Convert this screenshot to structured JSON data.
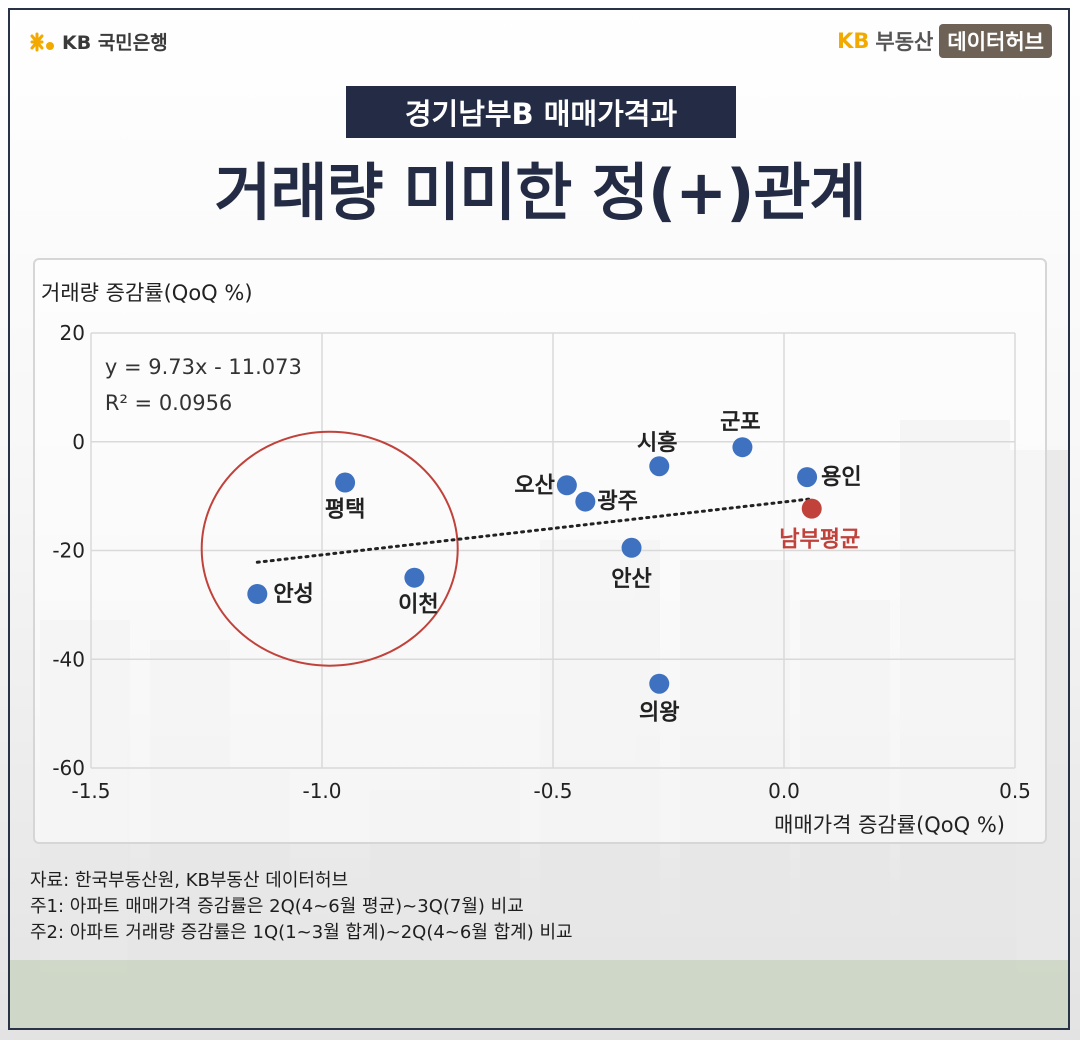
{
  "header": {
    "left_logo_text": "KB 국민은행",
    "right_logo_kb": "KB",
    "right_logo_text": "부동산",
    "right_badge": "데이터허브"
  },
  "title": {
    "subtitle": "경기남부B 매매가격과",
    "main": "거래량 미미한 정(+)관계"
  },
  "chart_data": {
    "type": "scatter",
    "ylabel": "거래량 증감률(QoQ %)",
    "xlabel": "매매가격 증감률(QoQ %)",
    "xlim": [
      -1.5,
      0.5
    ],
    "ylim": [
      -60,
      20
    ],
    "xticks": [
      "-1.5",
      "-1.0",
      "-0.5",
      "0.0",
      "0.5"
    ],
    "yticks": [
      "20",
      "0",
      "-20",
      "-40",
      "-60"
    ],
    "equation": "y = 9.73x - 11.073",
    "r_squared": "R² = 0.0956",
    "points": [
      {
        "label": "평택",
        "x": -0.95,
        "y": -7.5,
        "highlight": false
      },
      {
        "label": "안성",
        "x": -1.14,
        "y": -28.0,
        "highlight": false
      },
      {
        "label": "이천",
        "x": -0.8,
        "y": -25.0,
        "highlight": false
      },
      {
        "label": "오산",
        "x": -0.47,
        "y": -8.0,
        "highlight": false
      },
      {
        "label": "광주",
        "x": -0.43,
        "y": -11.0,
        "highlight": false
      },
      {
        "label": "시흥",
        "x": -0.27,
        "y": -4.5,
        "highlight": false
      },
      {
        "label": "군포",
        "x": -0.09,
        "y": -1.0,
        "highlight": false
      },
      {
        "label": "용인",
        "x": 0.05,
        "y": -6.5,
        "highlight": false
      },
      {
        "label": "안산",
        "x": -0.33,
        "y": -19.5,
        "highlight": false
      },
      {
        "label": "의왕",
        "x": -0.27,
        "y": -44.5,
        "highlight": false
      },
      {
        "label": "남부평균",
        "x": 0.06,
        "y": -12.3,
        "highlight": true
      }
    ],
    "trendline": {
      "slope": 9.73,
      "intercept": -11.073,
      "x_from": -1.14,
      "x_to": 0.06
    },
    "circle_group": [
      "평택",
      "안성",
      "이천"
    ],
    "colors": {
      "point": "#3e72c0",
      "highlight": "#c0423b",
      "circle": "#c0423b",
      "grid": "#d9d9d9"
    }
  },
  "notes": [
    "자료: 한국부동산원, KB부동산 데이터허브",
    "주1: 아파트 매매가격 증감률은 2Q(4~6월 평균)~3Q(7월) 비교",
    "주2: 아파트 거래량 증감률은 1Q(1~3월 합계)~2Q(4~6월 합계) 비교"
  ]
}
